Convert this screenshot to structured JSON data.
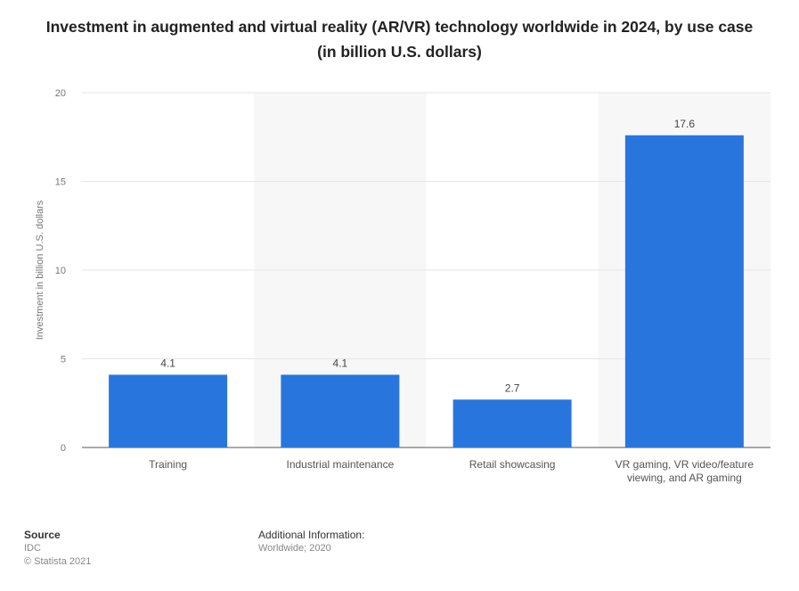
{
  "title": "Investment in augmented and virtual reality (AR/VR) technology worldwide in 2024, by use case (in billion U.S. dollars)",
  "chart_data": {
    "type": "bar",
    "categories": [
      "Training",
      "Industrial maintenance",
      "Retail showcasing",
      "VR gaming, VR video/feature viewing, and AR gaming"
    ],
    "category_lines": [
      [
        "Training"
      ],
      [
        "Industrial maintenance"
      ],
      [
        "Retail showcasing"
      ],
      [
        "VR gaming, VR video/feature",
        "viewing, and AR gaming"
      ]
    ],
    "values": [
      4.1,
      4.1,
      2.7,
      17.6
    ],
    "value_labels": [
      "4.1",
      "4.1",
      "2.7",
      "17.6"
    ],
    "ylabel": "Investment in billion U.S. dollars",
    "ylim": [
      0,
      20
    ],
    "yticks": [
      0,
      5,
      10,
      15,
      20
    ],
    "grid": true,
    "bar_color": "#2876dd"
  },
  "footer": {
    "source_label": "Source",
    "source_value": "IDC",
    "copyright": "© Statista 2021",
    "info_label": "Additional Information:",
    "info_value": "Worldwide; 2020"
  }
}
